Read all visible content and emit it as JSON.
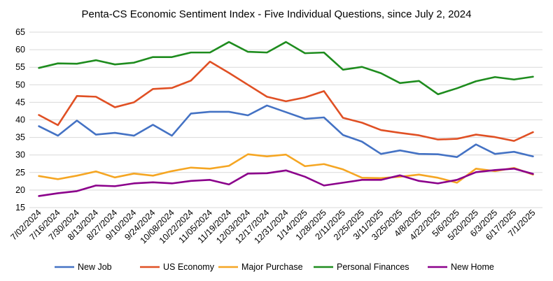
{
  "chart_data": {
    "type": "line",
    "title": "Penta-CS Economic Sentiment Index - Five Individual Questions, since July 2, 2024",
    "xlabel": "",
    "ylabel": "",
    "ylim": [
      15,
      65
    ],
    "yticks": [
      15,
      20,
      25,
      30,
      35,
      40,
      45,
      50,
      55,
      60,
      65
    ],
    "grid": "horizontal",
    "legend": "bottom",
    "x": [
      "7/02/2024",
      "7/16/2024",
      "7/30/2024",
      "8/13/2024",
      "8/27/2024",
      "9/10/2024",
      "9/24/2024",
      "10/08/2024",
      "10/22/2024",
      "11/05/2024",
      "11/19/2024",
      "12/03/2024",
      "12/17/2024",
      "12/31/2024",
      "1/14/2025",
      "1/28/2025",
      "2/11/2025",
      "2/25/2025",
      "3/11/2025",
      "3/25/2025",
      "4/8/2025",
      "4/22/2025",
      "5/6/2025",
      "5/20/2025",
      "6/3/2025",
      "6/17/2025",
      "7/1/2025"
    ],
    "series": [
      {
        "name": "New Job",
        "color": "#4472c4",
        "values": [
          38.2,
          35.5,
          39.8,
          35.8,
          36.3,
          35.5,
          38.6,
          35.5,
          41.8,
          42.3,
          42.3,
          41.3,
          44.1,
          42.2,
          40.3,
          40.7,
          35.7,
          33.8,
          30.3,
          31.3,
          30.3,
          30.2,
          29.4,
          33.0,
          30.3,
          30.9,
          29.6
        ]
      },
      {
        "name": "US Economy",
        "color": "#e05024",
        "values": [
          41.4,
          38.5,
          46.8,
          46.6,
          43.6,
          45.0,
          48.8,
          49.1,
          51.2,
          56.6,
          53.4,
          50.0,
          46.6,
          45.3,
          46.4,
          48.2,
          40.6,
          39.2,
          37.1,
          36.3,
          35.6,
          34.4,
          34.6,
          35.8,
          35.1,
          34.0,
          36.5
        ]
      },
      {
        "name": "Major Purchase",
        "color": "#f5a623",
        "values": [
          24.0,
          23.1,
          24.1,
          25.3,
          23.6,
          24.7,
          24.1,
          25.4,
          26.4,
          26.1,
          26.9,
          30.2,
          29.6,
          30.1,
          26.8,
          27.4,
          25.9,
          23.5,
          23.4,
          23.8,
          24.4,
          23.5,
          22.1,
          26.1,
          25.4,
          26.3,
          24.4
        ]
      },
      {
        "name": "Personal Finances",
        "color": "#1e8c1e",
        "values": [
          54.8,
          56.1,
          56.0,
          57.0,
          55.8,
          56.3,
          57.9,
          57.9,
          59.2,
          59.2,
          62.2,
          59.4,
          59.2,
          62.2,
          59.0,
          59.2,
          54.3,
          55.1,
          53.3,
          50.5,
          51.1,
          47.3,
          49.0,
          51.0,
          52.2,
          51.5,
          52.3
        ]
      },
      {
        "name": "New Home",
        "color": "#8b008b",
        "values": [
          18.3,
          19.1,
          19.7,
          21.3,
          21.1,
          21.9,
          22.2,
          21.9,
          22.6,
          22.9,
          21.6,
          24.7,
          24.8,
          25.6,
          23.8,
          21.3,
          22.1,
          22.9,
          22.9,
          24.2,
          22.6,
          21.9,
          22.9,
          25.1,
          25.7,
          26.1,
          24.6
        ]
      }
    ]
  }
}
